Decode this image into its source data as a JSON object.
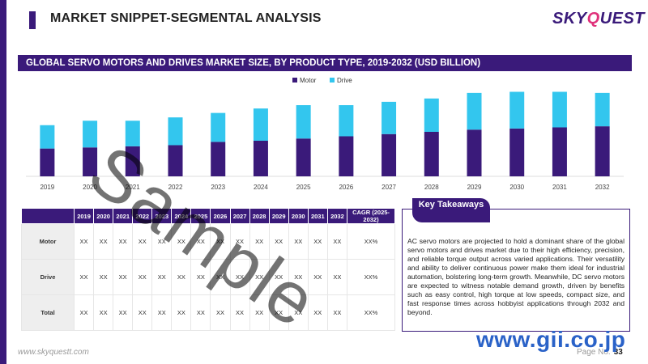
{
  "header": {
    "title": "MARKET SNIPPET-SEGMENTAL ANALYSIS",
    "logo_main": "SKY",
    "logo_q": "Q",
    "logo_rest": "UEST"
  },
  "chart_banner": "GLOBAL SERVO MOTORS AND DRIVES MARKET SIZE,  BY PRODUCT TYPE, 2019-2032 (USD BILLION)",
  "chart_data": {
    "type": "bar",
    "stacked": true,
    "categories": [
      "2019",
      "2020",
      "2021",
      "2022",
      "2023",
      "2024",
      "2025",
      "2026",
      "2027",
      "2028",
      "2029",
      "2030",
      "2031",
      "2032"
    ],
    "series": [
      {
        "name": "Motor",
        "color": "#3a1a7a",
        "values": [
          12.5,
          13.0,
          13.5,
          14.0,
          15.5,
          16.0,
          17.0,
          18.0,
          19.0,
          20.0,
          21.0,
          21.5,
          22.0,
          22.5
        ]
      },
      {
        "name": "Drive",
        "color": "#33c6ee",
        "values": [
          10.5,
          12.0,
          11.5,
          12.5,
          13.0,
          14.5,
          15.0,
          14.0,
          14.5,
          15.0,
          16.5,
          16.5,
          16.0,
          15.0
        ]
      }
    ],
    "legend_position": "top-center",
    "ylim": [
      0,
      40
    ],
    "grid": false
  },
  "table": {
    "columns": [
      "2019",
      "2020",
      "2021",
      "2022",
      "2023",
      "2024",
      "2025",
      "2026",
      "2027",
      "2028",
      "2029",
      "2030",
      "2031",
      "2032",
      "CAGR (2025-2032)"
    ],
    "rows": [
      {
        "label": "Motor",
        "cells": [
          "XX",
          "XX",
          "XX",
          "XX",
          "XX",
          "XX",
          "XX",
          "XX",
          "XX",
          "XX",
          "XX",
          "XX",
          "XX",
          "XX",
          "XX%"
        ]
      },
      {
        "label": "Drive",
        "cells": [
          "XX",
          "XX",
          "XX",
          "XX",
          "XX",
          "XX",
          "XX",
          "XX",
          "XX",
          "XX",
          "XX",
          "XX",
          "XX",
          "XX",
          "XX%"
        ]
      },
      {
        "label": "Total",
        "cells": [
          "XX",
          "XX",
          "XX",
          "XX",
          "XX",
          "XX",
          "XX",
          "XX",
          "XX",
          "XX",
          "XX",
          "XX",
          "XX",
          "XX",
          "XX%"
        ]
      }
    ]
  },
  "takeaways": {
    "header": "Key Takeaways",
    "text": "AC servo motors are projected to hold a dominant share of the global servo motors and drives market due to their high efficiency, precision, and reliable torque output across varied applications. Their versatility and ability to deliver continuous power make them ideal for industrial automation, bolstering long-term growth. Meanwhile, DC servo motors are expected to witness notable demand growth, driven by benefits such as easy control, high torque at low speeds, compact size, and fast response times across hobbyist applications through 2032 and beyond."
  },
  "footer": {
    "url": "www.skyquestt.com",
    "page_label": "Page No.",
    "page_number": "33"
  },
  "watermark": "Sample",
  "gii_mark": "www.gii.co.jp"
}
